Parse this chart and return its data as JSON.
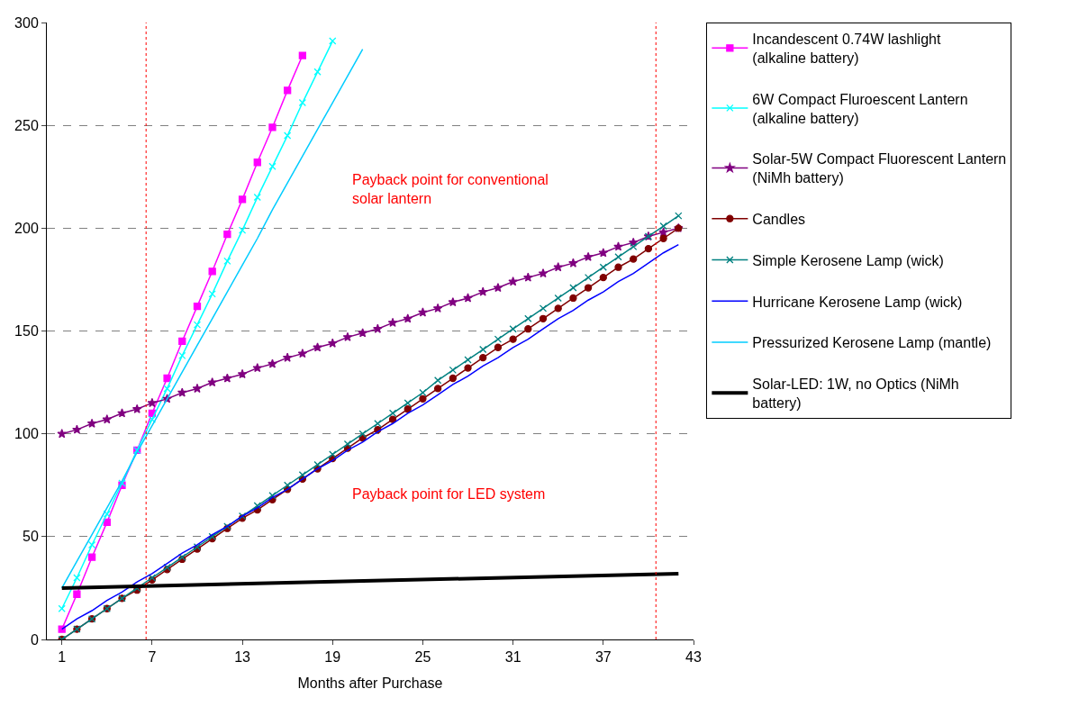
{
  "chart_data": {
    "type": "line",
    "xlabel": "Months after Purchase",
    "xlim": [
      0,
      43
    ],
    "xticks": [
      1,
      7,
      13,
      19,
      25,
      31,
      37,
      43
    ],
    "ylim": [
      0,
      300
    ],
    "yticks": [
      0,
      50,
      100,
      150,
      200,
      250,
      300
    ],
    "grid": "y",
    "legend": "right",
    "series": [
      {
        "name": "Incandescent 0.74W lashlight (alkaline battery)",
        "color": "#ff00ff",
        "marker": "square",
        "x": [
          1,
          2,
          3,
          4,
          5,
          6,
          7,
          8,
          9,
          10,
          11,
          12,
          13,
          14,
          15,
          16,
          17
        ],
        "values": [
          5,
          22,
          40,
          57,
          75,
          92,
          110,
          127,
          145,
          162,
          179,
          197,
          214,
          232,
          249,
          267,
          284
        ]
      },
      {
        "name": "6W Compact Fluroescent Lantern (alkaline battery)",
        "color": "#00ffff",
        "marker": "cross",
        "x": [
          1,
          2,
          3,
          4,
          5,
          6,
          7,
          8,
          9,
          10,
          11,
          12,
          13,
          14,
          15,
          16,
          17,
          18,
          19
        ],
        "values": [
          15,
          30,
          46,
          61,
          76,
          92,
          107,
          122,
          138,
          153,
          168,
          184,
          199,
          215,
          230,
          245,
          261,
          276,
          291
        ]
      },
      {
        "name": "Solar-5W Compact Fluorescent Lantern (NiMh battery)",
        "color": "#800080",
        "marker": "star",
        "x": [
          1,
          2,
          3,
          4,
          5,
          6,
          7,
          8,
          9,
          10,
          11,
          12,
          13,
          14,
          15,
          16,
          17,
          18,
          19,
          20,
          21,
          22,
          23,
          24,
          25,
          26,
          27,
          28,
          29,
          30,
          31,
          32,
          33,
          34,
          35,
          36,
          37,
          38,
          39,
          40,
          41,
          42
        ],
        "values": [
          100,
          102,
          105,
          107,
          110,
          112,
          115,
          117,
          120,
          122,
          125,
          127,
          129,
          132,
          134,
          137,
          139,
          142,
          144,
          147,
          149,
          151,
          154,
          156,
          159,
          161,
          164,
          166,
          169,
          171,
          174,
          176,
          178,
          181,
          183,
          186,
          188,
          191,
          193,
          196,
          198,
          200
        ]
      },
      {
        "name": "Candles",
        "color": "#800000",
        "marker": "circle",
        "x": [
          1,
          2,
          3,
          4,
          5,
          6,
          7,
          8,
          9,
          10,
          11,
          12,
          13,
          14,
          15,
          16,
          17,
          18,
          19,
          20,
          21,
          22,
          23,
          24,
          25,
          26,
          27,
          28,
          29,
          30,
          31,
          32,
          33,
          34,
          35,
          36,
          37,
          38,
          39,
          40,
          41,
          42
        ],
        "values": [
          0,
          5,
          10,
          15,
          20,
          24,
          29,
          34,
          39,
          44,
          49,
          54,
          59,
          63,
          68,
          73,
          78,
          83,
          88,
          93,
          98,
          102,
          107,
          112,
          117,
          122,
          127,
          132,
          137,
          142,
          146,
          151,
          156,
          161,
          166,
          171,
          176,
          181,
          185,
          190,
          195,
          200
        ]
      },
      {
        "name": "Simple Kerosene Lamp (wick)",
        "color": "#008080",
        "marker": "cross",
        "x": [
          1,
          2,
          3,
          4,
          5,
          6,
          7,
          8,
          9,
          10,
          11,
          12,
          13,
          14,
          15,
          16,
          17,
          18,
          19,
          20,
          21,
          22,
          23,
          24,
          25,
          26,
          27,
          28,
          29,
          30,
          31,
          32,
          33,
          34,
          35,
          36,
          37,
          38,
          39,
          40,
          41,
          42
        ],
        "values": [
          0,
          5,
          10,
          15,
          20,
          25,
          30,
          35,
          40,
          45,
          50,
          55,
          60,
          65,
          70,
          75,
          80,
          85,
          90,
          95,
          100,
          105,
          110,
          115,
          120,
          126,
          131,
          136,
          141,
          146,
          151,
          156,
          161,
          166,
          171,
          176,
          181,
          186,
          191,
          196,
          201,
          206
        ]
      },
      {
        "name": "Hurricane Kerosene Lamp (wick)",
        "color": "#0000ff",
        "marker": "none",
        "x": [
          1,
          2,
          3,
          4,
          5,
          6,
          7,
          8,
          9,
          10,
          11,
          12,
          13,
          14,
          15,
          16,
          17,
          18,
          19,
          20,
          21,
          22,
          23,
          24,
          25,
          26,
          27,
          28,
          29,
          30,
          31,
          32,
          33,
          34,
          35,
          36,
          37,
          38,
          39,
          40,
          41,
          42
        ],
        "values": [
          5,
          10,
          14,
          19,
          23,
          28,
          32,
          37,
          42,
          46,
          51,
          55,
          60,
          64,
          69,
          73,
          78,
          83,
          87,
          92,
          96,
          101,
          105,
          110,
          114,
          119,
          124,
          128,
          133,
          137,
          142,
          146,
          151,
          156,
          160,
          165,
          169,
          174,
          178,
          183,
          188,
          192
        ]
      },
      {
        "name": "Pressurized Kerosene Lamp (mantle)",
        "color": "#00ccff",
        "marker": "none",
        "x": [
          1,
          2,
          3,
          4,
          5,
          6,
          7,
          8,
          9,
          10,
          11,
          12,
          13,
          14,
          15,
          16,
          17,
          18,
          19,
          20,
          21
        ],
        "values": [
          25,
          38,
          51,
          64,
          77,
          91,
          104,
          117,
          130,
          143,
          156,
          169,
          182,
          195,
          209,
          222,
          235,
          248,
          261,
          274,
          287
        ]
      },
      {
        "name": "Solar-LED: 1W, no Optics (NiMh battery)",
        "color": "#000000",
        "marker": "none",
        "x": [
          1,
          42
        ],
        "values": [
          25,
          32
        ]
      }
    ],
    "ref_lines": [
      {
        "axis": "x",
        "value": 6.6,
        "color": "#ff0000",
        "line_style": "dotted"
      },
      {
        "axis": "x",
        "value": 40.5,
        "color": "#ff0000",
        "line_style": "dotted"
      }
    ],
    "annotations": [
      "Payback point for conventional solar lantern",
      "Payback point for LED system"
    ]
  }
}
